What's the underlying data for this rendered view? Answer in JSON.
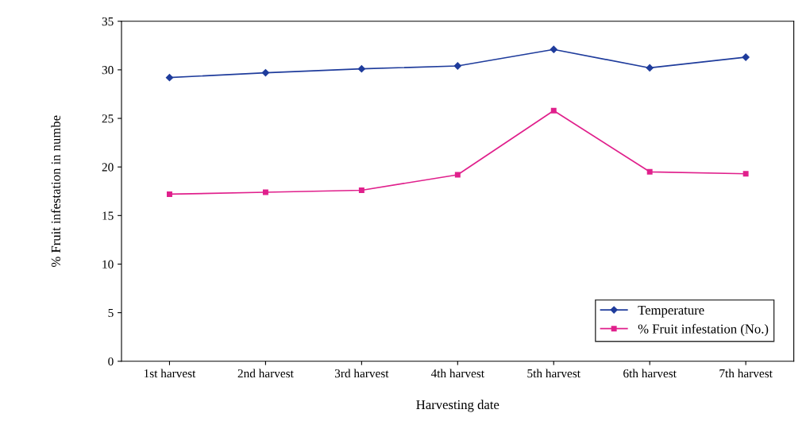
{
  "chart_data": {
    "type": "line",
    "xlabel": "Harvesting date",
    "ylabel": "% Fruit infestation in numbe",
    "categories": [
      "1st harvest",
      "2nd harvest",
      "3rd harvest",
      "4th harvest",
      "5th harvest",
      "6th harvest",
      "7th harvest"
    ],
    "series": [
      {
        "name": "Temperature",
        "color": "#1f3c9c",
        "marker": "diamond",
        "values": [
          29.2,
          29.7,
          30.1,
          30.4,
          32.1,
          30.2,
          31.3
        ]
      },
      {
        "name": "% Fruit infestation (No.)",
        "color": "#e0208c",
        "marker": "square",
        "values": [
          17.2,
          17.4,
          17.6,
          19.2,
          25.8,
          19.5,
          19.3
        ]
      }
    ],
    "ylim": [
      0,
      35
    ],
    "yticks": [
      0,
      5,
      10,
      15,
      20,
      25,
      30,
      35
    ],
    "grid": false,
    "legend": "bottom right",
    "line_style": "solid"
  }
}
